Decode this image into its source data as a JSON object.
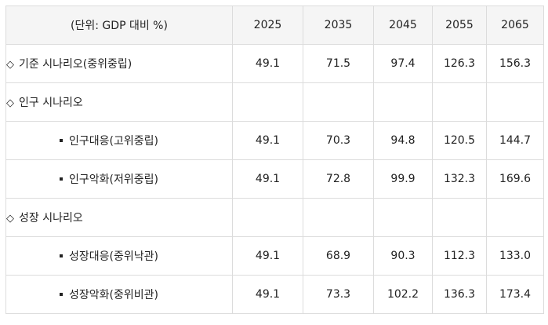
{
  "table": {
    "header": {
      "unit_label": "(단위: GDP 대비 %)",
      "years": [
        "2025",
        "2035",
        "2045",
        "2055",
        "2065"
      ]
    },
    "rows": [
      {
        "kind": "section",
        "marker": "◇",
        "label": "기준 시나리오(중위중립)",
        "values": [
          "49.1",
          "71.5",
          "97.4",
          "126.3",
          "156.3"
        ]
      },
      {
        "kind": "section",
        "marker": "◇",
        "label": "인구 시나리오",
        "values": [
          "",
          "",
          "",
          "",
          ""
        ]
      },
      {
        "kind": "sub",
        "label": "인구대응(고위중립)",
        "values": [
          "49.1",
          "70.3",
          "94.8",
          "120.5",
          "144.7"
        ]
      },
      {
        "kind": "sub",
        "label": "인구악화(저위중립)",
        "values": [
          "49.1",
          "72.8",
          "99.9",
          "132.3",
          "169.6"
        ]
      },
      {
        "kind": "section",
        "marker": "◇",
        "label": "성장 시나리오",
        "values": [
          "",
          "",
          "",
          "",
          ""
        ]
      },
      {
        "kind": "sub",
        "label": "성장대응(중위낙관)",
        "values": [
          "49.1",
          "68.9",
          "90.3",
          "112.3",
          "133.0"
        ]
      },
      {
        "kind": "sub",
        "label": "성장악화(중위비관)",
        "values": [
          "49.1",
          "73.3",
          "102.2",
          "136.3",
          "173.4"
        ]
      }
    ]
  }
}
